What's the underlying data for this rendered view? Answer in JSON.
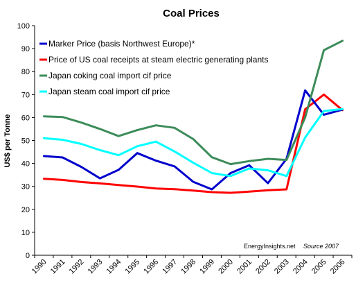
{
  "chart_data": {
    "type": "line",
    "title": "Coal Prices",
    "xlabel": "",
    "ylabel": "US$ per Tonne",
    "x": [
      "1990",
      "1991",
      "1992",
      "1993",
      "1994",
      "1995",
      "1996",
      "1997",
      "1998",
      "1999",
      "2000",
      "2001",
      "2002",
      "2003",
      "2004",
      "2005",
      "2006"
    ],
    "ylim": [
      0,
      100
    ],
    "yticks": [
      0,
      10,
      20,
      30,
      40,
      50,
      60,
      70,
      80,
      90,
      100
    ],
    "grid": false,
    "legend_position": "top-left",
    "series": [
      {
        "name": "Marker Price (basis Northwest Europe)*",
        "color": "#0000CC",
        "values": [
          43.2,
          42.6,
          38.5,
          33.5,
          37.2,
          44.5,
          41.2,
          38.7,
          32.0,
          28.7,
          35.8,
          39.2,
          31.4,
          42.0,
          71.8,
          61.2,
          63.4
        ]
      },
      {
        "name": "Price of US coal receipts at steam electric generating plants",
        "color": "#FF0000",
        "values": [
          33.3,
          32.8,
          31.9,
          31.3,
          30.6,
          29.9,
          29.1,
          28.8,
          28.2,
          27.5,
          27.2,
          27.7,
          28.3,
          28.7,
          63.6,
          70.0,
          63.2
        ]
      },
      {
        "name": "Japan coking coal import cif price",
        "color": "#3C8C5A",
        "values": [
          60.5,
          60.2,
          57.8,
          55.0,
          51.9,
          54.5,
          56.6,
          55.5,
          50.6,
          42.7,
          39.7,
          41.0,
          42.0,
          41.5,
          60.0,
          89.3,
          93.4
        ]
      },
      {
        "name": "Japan steam coal import cif price",
        "color": "#00FFFF",
        "values": [
          51.0,
          50.3,
          48.5,
          45.8,
          43.6,
          47.5,
          49.5,
          45.2,
          40.3,
          35.8,
          34.5,
          37.8,
          37.0,
          34.5,
          51.3,
          62.8,
          63.7
        ]
      }
    ],
    "annotations": [
      "EnergyInsights.net",
      "Source 2007"
    ]
  }
}
